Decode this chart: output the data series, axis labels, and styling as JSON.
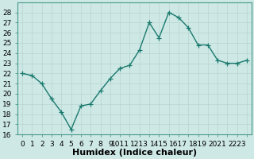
{
  "x": [
    0,
    1,
    2,
    3,
    4,
    5,
    6,
    7,
    8,
    9,
    10,
    11,
    12,
    13,
    14,
    15,
    16,
    17,
    18,
    19,
    20,
    21,
    22,
    23
  ],
  "y": [
    22,
    21.8,
    21,
    19.5,
    18.2,
    16.5,
    18.8,
    19,
    20.3,
    21.5,
    22.5,
    22.8,
    24.3,
    27,
    25.5,
    28,
    27.5,
    26.5,
    24.8,
    24.8,
    23.3,
    23,
    23,
    23.3
  ],
  "line_color": "#1a7a6e",
  "marker": "+",
  "marker_size": 4,
  "bg_color": "#cde8e5",
  "grid_color": "#b8d4d0",
  "xlabel": "Humidex (Indice chaleur)",
  "ylim": [
    16,
    29
  ],
  "xlim": [
    -0.5,
    23.5
  ],
  "yticks": [
    16,
    17,
    18,
    19,
    20,
    21,
    22,
    23,
    24,
    25,
    26,
    27,
    28
  ],
  "tick_fontsize": 6.5,
  "xlabel_fontsize": 8
}
